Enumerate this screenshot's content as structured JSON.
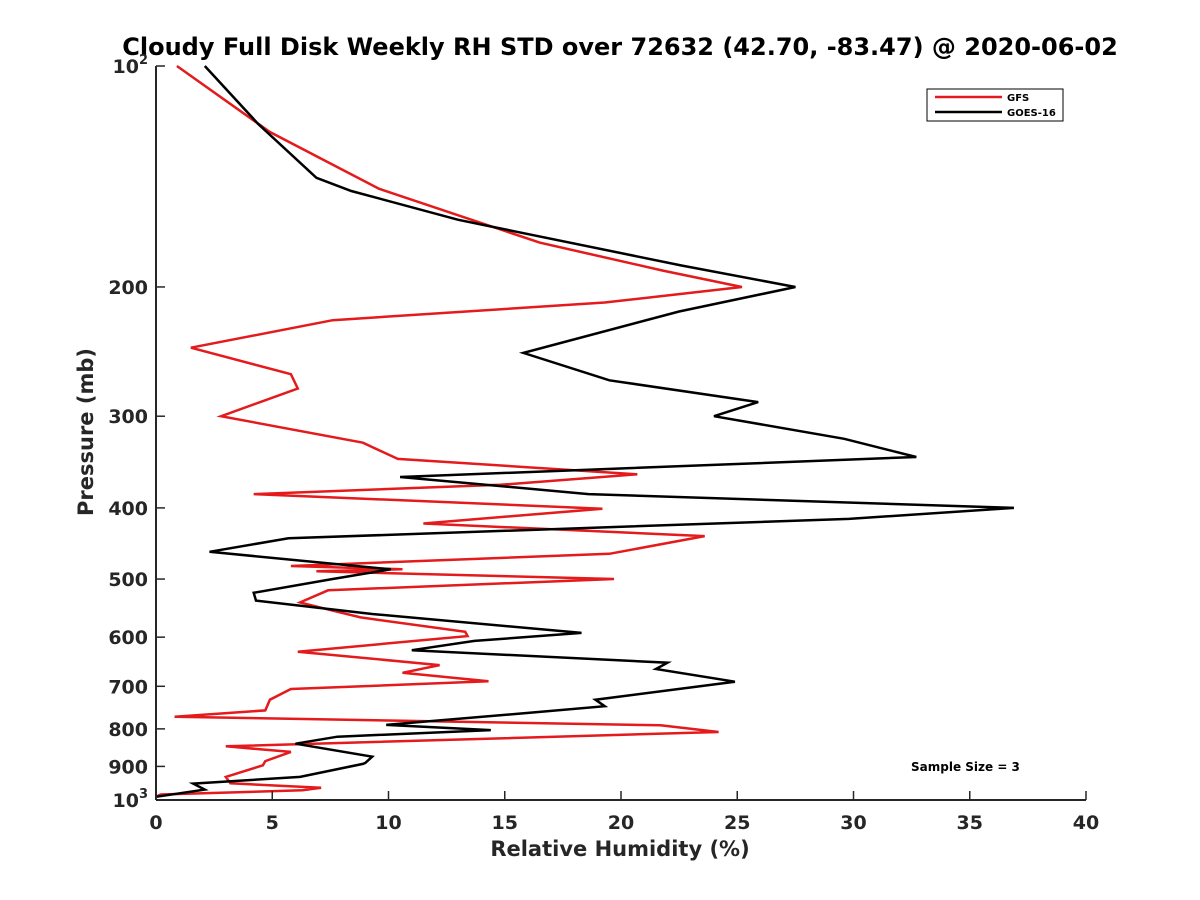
{
  "chart_data": {
    "type": "line",
    "title": "Cloudy Full Disk Weekly RH STD over 72632 (42.70, -83.47) @ 2020-06-02",
    "xlabel": "Relative Humidity (%)",
    "ylabel": "Pressure (mb)",
    "xlim": [
      0,
      40
    ],
    "ylim": [
      100,
      1000
    ],
    "y_scale": "log",
    "y_reversed": true,
    "grid": false,
    "legend_position": "top-right",
    "x_ticks": [
      0,
      5,
      10,
      15,
      20,
      25,
      30,
      35,
      40
    ],
    "x_tick_labels": [
      "0",
      "5",
      "10",
      "15",
      "20",
      "25",
      "30",
      "35",
      "40"
    ],
    "y_ticks": [
      {
        "value": 100,
        "base": "10",
        "exp": "2"
      },
      {
        "value": 200,
        "label": "200"
      },
      {
        "value": 300,
        "label": "300"
      },
      {
        "value": 400,
        "label": "400"
      },
      {
        "value": 500,
        "label": "500"
      },
      {
        "value": 600,
        "label": "600"
      },
      {
        "value": 700,
        "label": "700"
      },
      {
        "value": 800,
        "label": "800"
      },
      {
        "value": 900,
        "label": "900"
      },
      {
        "value": 1000,
        "base": "10",
        "exp": "3"
      }
    ],
    "series": [
      {
        "name": "GFS",
        "color": "#e41a1c",
        "points": [
          [
            0.9,
            100
          ],
          [
            4.9,
            123
          ],
          [
            9.6,
            147
          ],
          [
            16.5,
            174
          ],
          [
            21.8,
            190
          ],
          [
            25.2,
            200
          ],
          [
            19.3,
            210
          ],
          [
            7.6,
            222
          ],
          [
            1.5,
            242
          ],
          [
            5.8,
            263
          ],
          [
            6.1,
            275
          ],
          [
            2.8,
            300
          ],
          [
            8.9,
            326
          ],
          [
            10.4,
            343
          ],
          [
            20.7,
            360
          ],
          [
            14.8,
            372
          ],
          [
            4.2,
            383
          ],
          [
            19.2,
            401
          ],
          [
            11.5,
            420
          ],
          [
            23.6,
            437
          ],
          [
            19.5,
            462
          ],
          [
            5.8,
            480
          ],
          [
            10.6,
            485
          ],
          [
            6.9,
            488
          ],
          [
            19.7,
            500
          ],
          [
            7.4,
            518
          ],
          [
            6.2,
            538
          ],
          [
            7.7,
            553
          ],
          [
            8.8,
            564
          ],
          [
            13.3,
            590
          ],
          [
            13.4,
            598
          ],
          [
            6.1,
            628
          ],
          [
            12.2,
            655
          ],
          [
            10.6,
            671
          ],
          [
            14.3,
            689
          ],
          [
            5.8,
            706
          ],
          [
            4.9,
            730
          ],
          [
            4.7,
            755
          ],
          [
            0.8,
            770
          ],
          [
            21.7,
            791
          ],
          [
            24.2,
            808
          ],
          [
            3.0,
            845
          ],
          [
            5.8,
            860
          ],
          [
            4.7,
            885
          ],
          [
            4.6,
            897
          ],
          [
            3.0,
            930
          ],
          [
            3.2,
            949
          ],
          [
            7.1,
            962
          ],
          [
            6.3,
            970
          ],
          [
            0.2,
            983
          ],
          [
            0.0,
            990
          ]
        ]
      },
      {
        "name": "GOES-16",
        "color": "#000000",
        "points": [
          [
            2.1,
            100
          ],
          [
            4.4,
            120
          ],
          [
            6.9,
            142
          ],
          [
            8.4,
            148
          ],
          [
            13.0,
            162
          ],
          [
            22.6,
            187
          ],
          [
            27.5,
            200
          ],
          [
            22.5,
            216
          ],
          [
            15.8,
            246
          ],
          [
            19.5,
            268
          ],
          [
            25.9,
            287
          ],
          [
            24.0,
            300
          ],
          [
            29.6,
            322
          ],
          [
            32.7,
            341
          ],
          [
            10.5,
            363
          ],
          [
            18.6,
            383
          ],
          [
            36.9,
            400
          ],
          [
            29.8,
            414
          ],
          [
            5.7,
            440
          ],
          [
            2.3,
            459
          ],
          [
            10.1,
            485
          ],
          [
            7.6,
            500
          ],
          [
            4.2,
            522
          ],
          [
            4.3,
            535
          ],
          [
            9.3,
            558
          ],
          [
            18.3,
            592
          ],
          [
            13.7,
            607
          ],
          [
            11.0,
            625
          ],
          [
            22.0,
            650
          ],
          [
            21.5,
            663
          ],
          [
            24.9,
            690
          ],
          [
            22.6,
            705
          ],
          [
            18.9,
            730
          ],
          [
            19.3,
            745
          ],
          [
            16.2,
            760
          ],
          [
            9.9,
            790
          ],
          [
            14.4,
            803
          ],
          [
            7.8,
            820
          ],
          [
            6.0,
            838
          ],
          [
            9.3,
            873
          ],
          [
            9.0,
            890
          ],
          [
            8.9,
            893
          ],
          [
            6.2,
            930
          ],
          [
            1.6,
            950
          ],
          [
            2.1,
            968
          ],
          [
            0.0,
            990
          ]
        ]
      }
    ],
    "annotations": [
      "Sample Size = 3"
    ]
  }
}
